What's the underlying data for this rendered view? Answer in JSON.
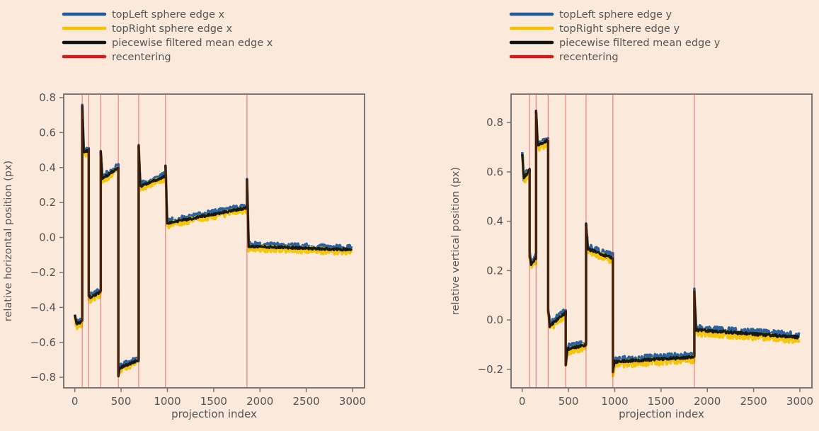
{
  "chart_data": [
    {
      "type": "line",
      "xlabel": "projection index",
      "ylabel": "relative horizontal position (px)",
      "xlim": [
        -120,
        3130
      ],
      "ylim": [
        -0.86,
        0.82
      ],
      "xticks": [
        0,
        500,
        1000,
        1500,
        2000,
        2500,
        3000
      ],
      "xtick_labels": [
        "0",
        "500",
        "1000",
        "1500",
        "2000",
        "2500",
        "3000"
      ],
      "yticks": [
        -0.8,
        -0.6,
        -0.4,
        -0.2,
        0.0,
        0.2,
        0.4,
        0.6,
        0.8
      ],
      "ytick_labels": [
        "−0.8",
        "−0.6",
        "−0.4",
        "−0.2",
        "0.0",
        "0.2",
        "0.4",
        "0.6",
        "0.8"
      ],
      "legend_position": "above-plot",
      "grid": false,
      "recentering_x": [
        80,
        150,
        280,
        470,
        690,
        980,
        1860
      ],
      "segments": [
        {
          "x0": 0,
          "x1": 80,
          "y0": -0.5,
          "y1": -0.48,
          "spike": -0.44
        },
        {
          "x0": 80,
          "x1": 150,
          "y0": 0.48,
          "y1": 0.5,
          "spike": 0.75
        },
        {
          "x0": 150,
          "x1": 280,
          "y0": -0.35,
          "y1": -0.31,
          "spike": -0.33
        },
        {
          "x0": 280,
          "x1": 470,
          "y0": 0.33,
          "y1": 0.4,
          "spike": 0.49
        },
        {
          "x0": 470,
          "x1": 690,
          "y0": -0.75,
          "y1": -0.7,
          "spike": -0.79
        },
        {
          "x0": 690,
          "x1": 980,
          "y0": 0.29,
          "y1": 0.35,
          "spike": 0.53
        },
        {
          "x0": 980,
          "x1": 1860,
          "y0": 0.08,
          "y1": 0.17,
          "spike": 0.41
        },
        {
          "x0": 1860,
          "x1": 2990,
          "y0": -0.05,
          "y1": -0.07,
          "spike": 0.33
        }
      ],
      "series": [
        {
          "name": "topLeft sphere edge x",
          "color": "#1f5c99",
          "offset": 0.008,
          "noise": 0.018
        },
        {
          "name": "topRight sphere edge x",
          "color": "#f5c400",
          "offset": -0.012,
          "noise": 0.018
        },
        {
          "name": "piecewise filtered mean edge x",
          "color": "#111111",
          "offset": 0.0,
          "noise": 0.006
        },
        {
          "name": "recentering",
          "color": "#d01c1f"
        }
      ]
    },
    {
      "type": "line",
      "xlabel": "projection index",
      "ylabel": "relative vertical position (px)",
      "xlim": [
        -120,
        3130
      ],
      "ylim": [
        -0.275,
        0.915
      ],
      "xticks": [
        0,
        500,
        1000,
        1500,
        2000,
        2500,
        3000
      ],
      "xtick_labels": [
        "0",
        "500",
        "1000",
        "1500",
        "2000",
        "2500",
        "3000"
      ],
      "yticks": [
        -0.2,
        0.0,
        0.2,
        0.4,
        0.6,
        0.8
      ],
      "ytick_labels": [
        "−0.2",
        "0.0",
        "0.2",
        "0.4",
        "0.6",
        "0.8"
      ],
      "legend_position": "above-plot",
      "grid": false,
      "recentering_x": [
        80,
        150,
        280,
        470,
        690,
        980,
        1860
      ],
      "segments": [
        {
          "x0": 0,
          "x1": 80,
          "y0": 0.56,
          "y1": 0.61,
          "spike": 0.67
        },
        {
          "x0": 80,
          "x1": 150,
          "y0": 0.22,
          "y1": 0.25,
          "spike": 0.26
        },
        {
          "x0": 150,
          "x1": 280,
          "y0": 0.7,
          "y1": 0.73,
          "spike": 0.85
        },
        {
          "x0": 280,
          "x1": 470,
          "y0": -0.03,
          "y1": 0.03,
          "spike": 0.04
        },
        {
          "x0": 470,
          "x1": 690,
          "y0": -0.12,
          "y1": -0.1,
          "spike": -0.18
        },
        {
          "x0": 690,
          "x1": 980,
          "y0": 0.29,
          "y1": 0.25,
          "spike": 0.39
        },
        {
          "x0": 980,
          "x1": 1860,
          "y0": -0.17,
          "y1": -0.15,
          "spike": -0.21
        },
        {
          "x0": 1860,
          "x1": 2990,
          "y0": -0.04,
          "y1": -0.07,
          "spike": 0.11
        }
      ],
      "series": [
        {
          "name": "topLeft sphere edge y",
          "color": "#1f5c99",
          "offset": 0.006,
          "noise": 0.015
        },
        {
          "name": "topRight sphere edge y",
          "color": "#f5c400",
          "offset": -0.01,
          "noise": 0.015
        },
        {
          "name": "piecewise filtered mean edge y",
          "color": "#111111",
          "offset": 0.0,
          "noise": 0.005
        },
        {
          "name": "recentering",
          "color": "#d01c1f"
        }
      ]
    }
  ]
}
